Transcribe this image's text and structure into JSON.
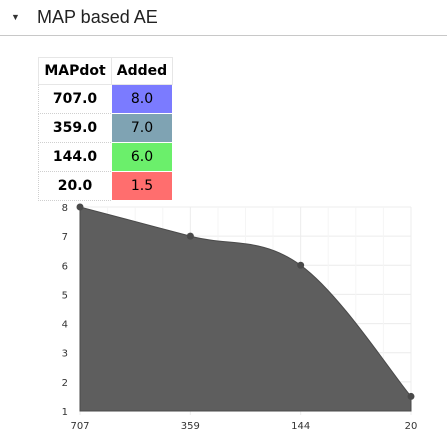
{
  "panel": {
    "title": "MAP based AE",
    "collapse_icon": "caret-down-icon"
  },
  "table": {
    "headers": [
      "MAPdot",
      "Added"
    ],
    "rows": [
      {
        "key": "707.0",
        "value": "8.0",
        "color": "#7b7bff"
      },
      {
        "key": "359.0",
        "value": "7.0",
        "color": "#7fa3b3"
      },
      {
        "key": "144.0",
        "value": "6.0",
        "color": "#6bef6b"
      },
      {
        "key": "20.0",
        "value": "1.5",
        "color": "#ff6e6e"
      }
    ]
  },
  "chart_data": {
    "type": "area",
    "x": [
      "707",
      "359",
      "144",
      "20"
    ],
    "values": [
      8.0,
      7.0,
      6.0,
      1.5
    ],
    "y_ticks": [
      1,
      2,
      3,
      4,
      5,
      6,
      7,
      8
    ],
    "ylim": [
      1,
      8
    ],
    "fill_color": "#5e5e5e",
    "grid": true
  }
}
